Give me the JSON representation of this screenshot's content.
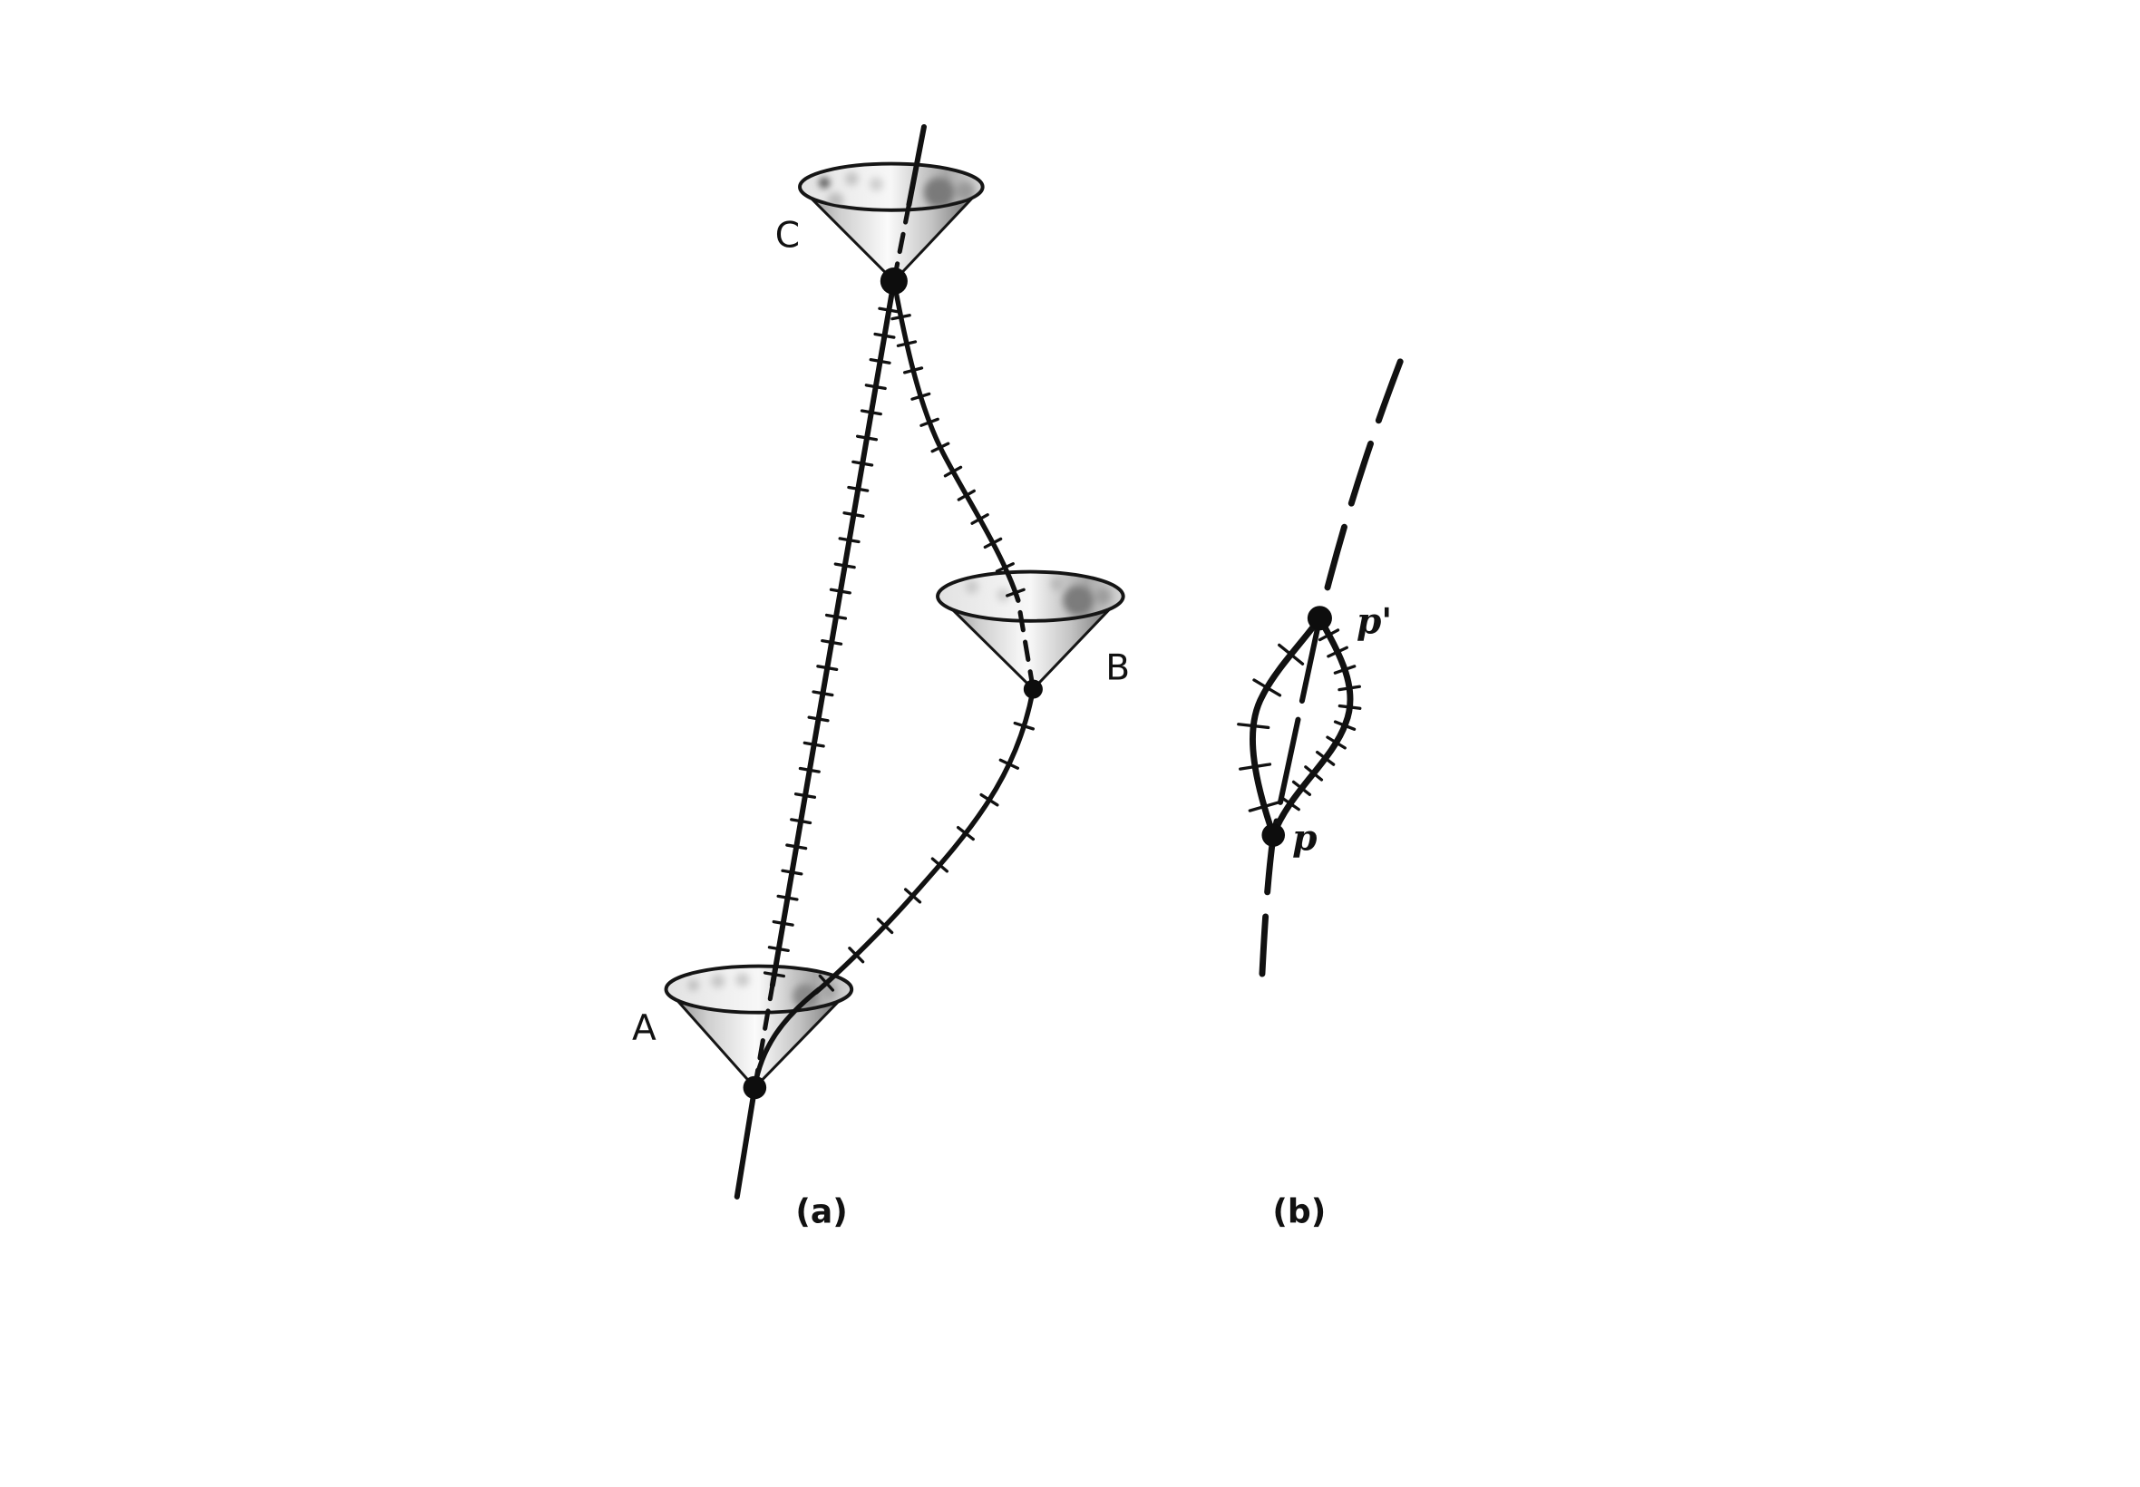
{
  "panels": [
    {
      "caption": "(a)",
      "events": {
        "A": "A",
        "B": "B",
        "C": "C"
      }
    },
    {
      "caption": "(b)",
      "events": {
        "p": "p",
        "p_prime": "p'"
      }
    }
  ]
}
